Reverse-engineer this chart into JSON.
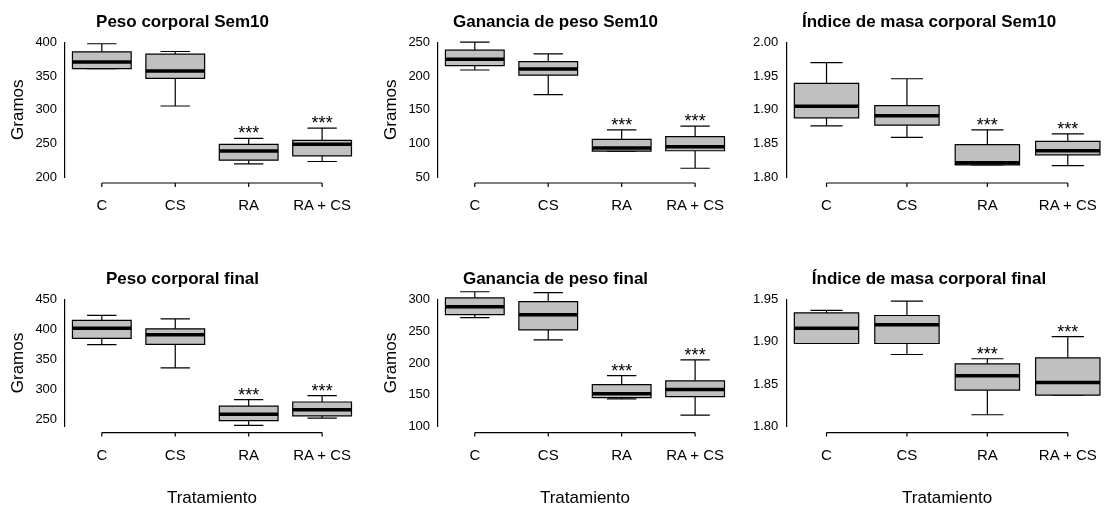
{
  "chart_data": [
    {
      "type": "box",
      "title": "Peso corporal Sem10",
      "ylabel": "Gramos",
      "categories": [
        "C",
        "CS",
        "RA",
        "RA + CS"
      ],
      "color": "#c0c0c0",
      "ylim": [
        200,
        400
      ],
      "yticks": [
        200,
        250,
        300,
        350,
        400
      ],
      "grid": false,
      "boxes": [
        {
          "low": 361,
          "q1": 361,
          "median": 371,
          "q3": 386,
          "high": 398
        },
        {
          "low": 305.5,
          "q1": 346.5,
          "median": 357.5,
          "q3": 382.5,
          "high": 386.5
        },
        {
          "low": 219.5,
          "q1": 225,
          "median": 238.5,
          "q3": 248.5,
          "high": 257.5
        },
        {
          "low": 223,
          "q1": 231.5,
          "median": 248.5,
          "q3": 254.5,
          "high": 272.5
        }
      ],
      "annotations": [
        "***",
        "***"
      ]
    },
    {
      "type": "box",
      "title": "Ganancia de peso Sem10",
      "ylabel": "Gramos",
      "categories": [
        "C",
        "CS",
        "RA",
        "RA + CS"
      ],
      "color": "#c0c0c0",
      "ylim": [
        50,
        250
      ],
      "yticks": [
        50,
        100,
        150,
        200,
        250
      ],
      "grid": false,
      "boxes": [
        {
          "low": 209,
          "q1": 215.5,
          "median": 225,
          "q3": 238.5,
          "high": 250.5
        },
        {
          "low": 172.5,
          "q1": 201.5,
          "median": 210.5,
          "q3": 221.5,
          "high": 233
        },
        {
          "low": 88.5,
          "q1": 88.5,
          "median": 93,
          "q3": 106,
          "high": 120
        },
        {
          "low": 63,
          "q1": 89,
          "median": 95,
          "q3": 110,
          "high": 125.5
        }
      ],
      "annotations": [
        "***",
        "***"
      ]
    },
    {
      "type": "box",
      "title": "Índice de masa corporal Sem10",
      "categories": [
        "C",
        "CS",
        "RA",
        "RA + CS"
      ],
      "color": "#c0c0c0",
      "ylim": [
        1.8,
        2.0
      ],
      "yticks": [
        {
          "value": 1.8,
          "label": "1.80"
        },
        {
          "value": 1.85,
          "label": "1.85"
        },
        {
          "value": 1.9,
          "label": "1.90"
        },
        {
          "value": 1.95,
          "label": "1.95"
        },
        {
          "value": 2.0,
          "label": "2.00"
        }
      ],
      "grid": false,
      "boxes": [
        {
          "low": 1.876,
          "q1": 1.888,
          "median": 1.905,
          "q3": 1.939,
          "high": 1.97
        },
        {
          "low": 1.859,
          "q1": 1.877,
          "median": 1.891,
          "q3": 1.906,
          "high": 1.946
        },
        {
          "low": 1.818,
          "q1": 1.818,
          "median": 1.821,
          "q3": 1.848,
          "high": 1.87
        },
        {
          "low": 1.817,
          "q1": 1.833,
          "median": 1.839,
          "q3": 1.853,
          "high": 1.864
        }
      ],
      "annotations": [
        "***",
        "***"
      ]
    },
    {
      "type": "box",
      "title": "Peso corporal final",
      "ylabel": "Gramos",
      "xlabel": "Tratamiento",
      "categories": [
        "C",
        "CS",
        "RA",
        "RA + CS"
      ],
      "color": "#c0c0c0",
      "ylim": [
        238,
        450
      ],
      "yticks": [
        250,
        300,
        350,
        400,
        450
      ],
      "grid": false,
      "boxes": [
        {
          "low": 374.5,
          "q1": 385,
          "median": 402,
          "q3": 415,
          "high": 423.5
        },
        {
          "low": 336,
          "q1": 375,
          "median": 391,
          "q3": 401,
          "high": 417.5
        },
        {
          "low": 240,
          "q1": 248,
          "median": 258.5,
          "q3": 272,
          "high": 283
        },
        {
          "low": 252,
          "q1": 256,
          "median": 266,
          "q3": 279,
          "high": 289.5
        }
      ],
      "annotations": [
        "***",
        "***"
      ]
    },
    {
      "type": "box",
      "title": "Ganancia de peso final",
      "ylabel": "Gramos",
      "xlabel": "Tratamiento",
      "categories": [
        "C",
        "CS",
        "RA",
        "RA + CS"
      ],
      "color": "#c0c0c0",
      "ylim": [
        100,
        300
      ],
      "yticks": [
        100,
        150,
        200,
        250,
        300
      ],
      "grid": false,
      "boxes": [
        {
          "low": 271.5,
          "q1": 276,
          "median": 288.5,
          "q3": 302.5,
          "high": 312
        },
        {
          "low": 236.5,
          "q1": 252,
          "median": 276,
          "q3": 296.5,
          "high": 310.5
        },
        {
          "low": 143.5,
          "q1": 145.5,
          "median": 151.5,
          "q3": 166,
          "high": 180
        },
        {
          "low": 118,
          "q1": 147,
          "median": 158.5,
          "q3": 172,
          "high": 205
        }
      ],
      "annotations": [
        "***",
        "***"
      ]
    },
    {
      "type": "box",
      "title": "Índice de masa corporal final",
      "xlabel": "Tratamiento",
      "categories": [
        "C",
        "CS",
        "RA",
        "RA + CS"
      ],
      "color": "#c0c0c0",
      "ylim": [
        1.8,
        1.95
      ],
      "yticks": [
        {
          "value": 1.8,
          "label": "1.80"
        },
        {
          "value": 1.85,
          "label": "1.85"
        },
        {
          "value": 1.9,
          "label": "1.90"
        },
        {
          "value": 1.95,
          "label": "1.95"
        }
      ],
      "grid": false,
      "boxes": [
        {
          "low": 1.898,
          "q1": 1.898,
          "median": 1.916,
          "q3": 1.934,
          "high": 1.937
        },
        {
          "low": 1.885,
          "q1": 1.898,
          "median": 1.92,
          "q3": 1.931,
          "high": 1.948
        },
        {
          "low": 1.814,
          "q1": 1.843,
          "median": 1.86,
          "q3": 1.874,
          "high": 1.88
        },
        {
          "low": 1.837,
          "q1": 1.837,
          "median": 1.852,
          "q3": 1.881,
          "high": 1.906
        }
      ],
      "annotations": [
        "***",
        "***"
      ]
    }
  ]
}
